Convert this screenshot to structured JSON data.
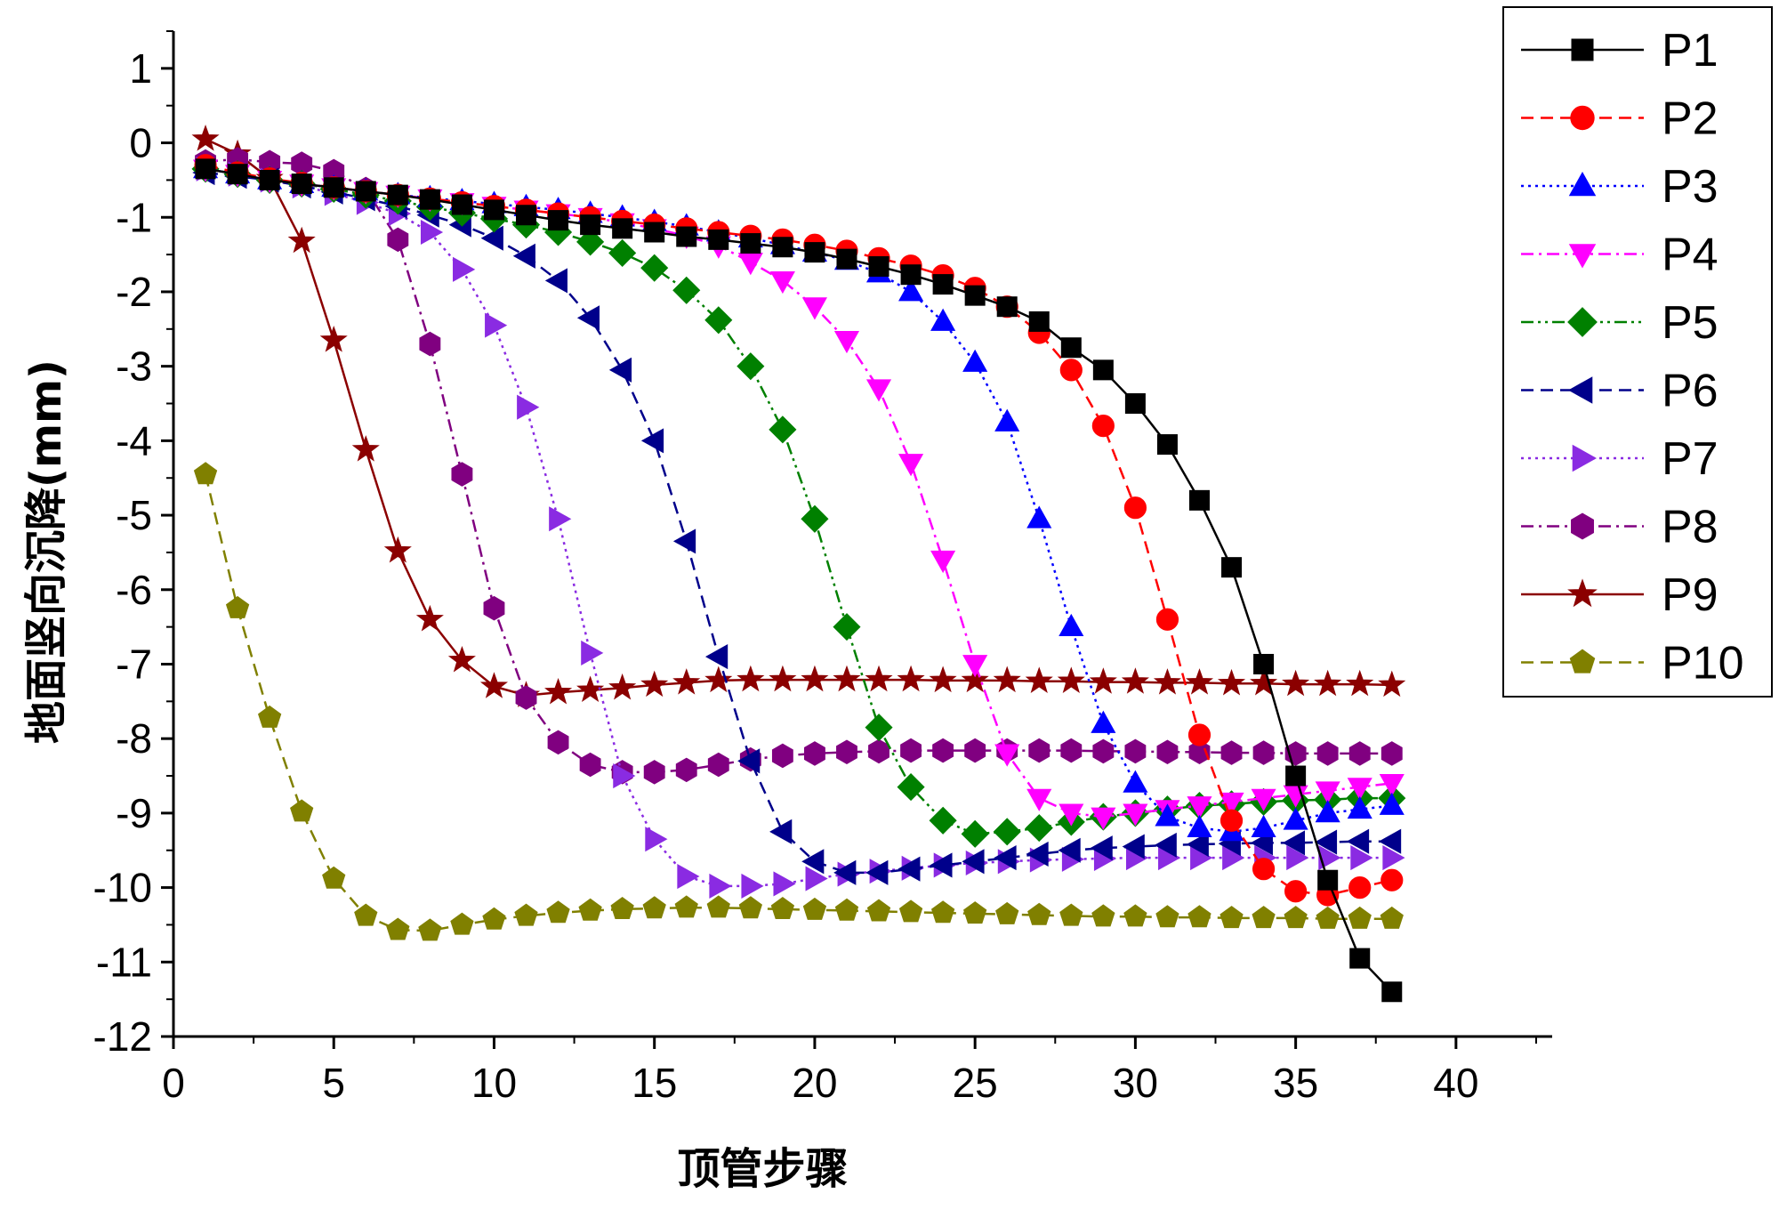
{
  "chart_data": {
    "type": "line",
    "title": "",
    "xlabel": "顶管步骤",
    "ylabel": "地面竖向沉降(mm)",
    "xlim": [
      0,
      43
    ],
    "ylim": [
      -12,
      1.5
    ],
    "xticks": [
      0,
      5,
      10,
      15,
      20,
      25,
      30,
      35,
      40
    ],
    "yticks": [
      1,
      0,
      -1,
      -2,
      -3,
      -4,
      -5,
      -6,
      -7,
      -8,
      -9,
      -10,
      -11,
      -12
    ],
    "legend_position": "top-right",
    "x": [
      1,
      2,
      3,
      4,
      5,
      6,
      7,
      8,
      9,
      10,
      11,
      12,
      13,
      14,
      15,
      16,
      17,
      18,
      19,
      20,
      21,
      22,
      23,
      24,
      25,
      26,
      27,
      28,
      29,
      30,
      31,
      32,
      33,
      34,
      35,
      36,
      37,
      38
    ],
    "series": [
      {
        "name": "P1",
        "color": "#000000",
        "marker": "square",
        "dash": "solid",
        "values": [
          -0.35,
          -0.42,
          -0.5,
          -0.55,
          -0.6,
          -0.65,
          -0.7,
          -0.76,
          -0.83,
          -0.9,
          -0.97,
          -1.04,
          -1.1,
          -1.15,
          -1.2,
          -1.26,
          -1.3,
          -1.35,
          -1.4,
          -1.47,
          -1.56,
          -1.66,
          -1.77,
          -1.9,
          -2.05,
          -2.2,
          -2.4,
          -2.75,
          -3.05,
          -3.5,
          -4.05,
          -4.8,
          -5.7,
          -7.0,
          -8.5,
          -9.9,
          -10.95,
          -11.4
        ]
      },
      {
        "name": "P2",
        "color": "#ff0000",
        "marker": "circle",
        "dash": "dashed",
        "values": [
          -0.3,
          -0.4,
          -0.48,
          -0.54,
          -0.6,
          -0.65,
          -0.7,
          -0.75,
          -0.8,
          -0.85,
          -0.9,
          -0.95,
          -1.0,
          -1.05,
          -1.1,
          -1.15,
          -1.2,
          -1.25,
          -1.3,
          -1.37,
          -1.45,
          -1.55,
          -1.65,
          -1.78,
          -1.95,
          -2.2,
          -2.55,
          -3.05,
          -3.8,
          -4.9,
          -6.4,
          -7.95,
          -9.1,
          -9.75,
          -10.05,
          -10.1,
          -10.0,
          -9.9
        ]
      },
      {
        "name": "P3",
        "color": "#0000ff",
        "marker": "triangle-up",
        "dash": "dotted",
        "values": [
          -0.35,
          -0.42,
          -0.5,
          -0.55,
          -0.6,
          -0.65,
          -0.7,
          -0.74,
          -0.78,
          -0.82,
          -0.86,
          -0.9,
          -0.95,
          -1.0,
          -1.06,
          -1.12,
          -1.2,
          -1.28,
          -1.37,
          -1.47,
          -1.58,
          -1.75,
          -2.0,
          -2.4,
          -2.95,
          -3.75,
          -5.05,
          -6.5,
          -7.8,
          -8.6,
          -9.05,
          -9.2,
          -9.25,
          -9.2,
          -9.1,
          -9.0,
          -8.95,
          -8.9
        ]
      },
      {
        "name": "P4",
        "color": "#ff00ff",
        "marker": "triangle-down",
        "dash": "dashdot",
        "values": [
          -0.35,
          -0.42,
          -0.5,
          -0.55,
          -0.6,
          -0.65,
          -0.7,
          -0.75,
          -0.8,
          -0.85,
          -0.9,
          -0.95,
          -1.0,
          -1.07,
          -1.15,
          -1.25,
          -1.38,
          -1.6,
          -1.85,
          -2.2,
          -2.65,
          -3.3,
          -4.3,
          -5.6,
          -7.0,
          -8.2,
          -8.8,
          -9.0,
          -9.05,
          -9.0,
          -8.95,
          -8.9,
          -8.85,
          -8.8,
          -8.75,
          -8.7,
          -8.65,
          -8.6
        ]
      },
      {
        "name": "P5",
        "color": "#008000",
        "marker": "diamond",
        "dash": "dashdotdot",
        "values": [
          -0.35,
          -0.42,
          -0.5,
          -0.55,
          -0.62,
          -0.7,
          -0.78,
          -0.86,
          -0.94,
          -1.02,
          -1.1,
          -1.2,
          -1.33,
          -1.48,
          -1.68,
          -1.98,
          -2.38,
          -3.0,
          -3.85,
          -5.05,
          -6.5,
          -7.85,
          -8.65,
          -9.1,
          -9.28,
          -9.25,
          -9.2,
          -9.12,
          -9.05,
          -9.0,
          -8.95,
          -8.9,
          -8.88,
          -8.85,
          -8.83,
          -8.82,
          -8.8,
          -8.8
        ]
      },
      {
        "name": "P6",
        "color": "#00008b",
        "marker": "triangle-left",
        "dash": "dashed",
        "values": [
          -0.4,
          -0.45,
          -0.5,
          -0.58,
          -0.66,
          -0.75,
          -0.85,
          -0.97,
          -1.1,
          -1.28,
          -1.52,
          -1.85,
          -2.35,
          -3.05,
          -4.0,
          -5.35,
          -6.9,
          -8.3,
          -9.25,
          -9.65,
          -9.8,
          -9.8,
          -9.75,
          -9.7,
          -9.65,
          -9.6,
          -9.55,
          -9.5,
          -9.47,
          -9.45,
          -9.43,
          -9.42,
          -9.41,
          -9.4,
          -9.4,
          -9.39,
          -9.38,
          -9.38
        ]
      },
      {
        "name": "P7",
        "color": "#8a2be2",
        "marker": "triangle-right",
        "dash": "dotted",
        "values": [
          -0.35,
          -0.42,
          -0.5,
          -0.58,
          -0.68,
          -0.8,
          -0.95,
          -1.2,
          -1.7,
          -2.45,
          -3.55,
          -5.05,
          -6.85,
          -8.5,
          -9.35,
          -9.85,
          -9.98,
          -9.98,
          -9.95,
          -9.88,
          -9.82,
          -9.78,
          -9.74,
          -9.7,
          -9.67,
          -9.65,
          -9.63,
          -9.62,
          -9.61,
          -9.6,
          -9.6,
          -9.6,
          -9.6,
          -9.6,
          -9.6,
          -9.6,
          -9.6,
          -9.6
        ]
      },
      {
        "name": "P8",
        "color": "#800080",
        "marker": "hexagon",
        "dash": "dashdot",
        "values": [
          -0.25,
          -0.22,
          -0.26,
          -0.28,
          -0.38,
          -0.62,
          -1.3,
          -2.7,
          -4.45,
          -6.25,
          -7.45,
          -8.05,
          -8.35,
          -8.45,
          -8.45,
          -8.42,
          -8.35,
          -8.28,
          -8.23,
          -8.2,
          -8.18,
          -8.17,
          -8.16,
          -8.16,
          -8.16,
          -8.16,
          -8.16,
          -8.16,
          -8.17,
          -8.17,
          -8.18,
          -8.18,
          -8.19,
          -8.19,
          -8.2,
          -8.2,
          -8.2,
          -8.2
        ]
      },
      {
        "name": "P9",
        "color": "#8b0000",
        "marker": "star",
        "dash": "solid",
        "values": [
          0.05,
          -0.15,
          -0.48,
          -1.32,
          -2.65,
          -4.12,
          -5.48,
          -6.4,
          -6.95,
          -7.3,
          -7.42,
          -7.38,
          -7.35,
          -7.32,
          -7.28,
          -7.25,
          -7.22,
          -7.21,
          -7.21,
          -7.21,
          -7.21,
          -7.21,
          -7.21,
          -7.22,
          -7.22,
          -7.22,
          -7.23,
          -7.23,
          -7.24,
          -7.24,
          -7.25,
          -7.25,
          -7.26,
          -7.26,
          -7.27,
          -7.27,
          -7.27,
          -7.28
        ]
      },
      {
        "name": "P10",
        "color": "#808000",
        "marker": "pentagon",
        "dash": "dashed",
        "values": [
          -4.45,
          -6.25,
          -7.72,
          -8.98,
          -9.88,
          -10.38,
          -10.57,
          -10.58,
          -10.5,
          -10.43,
          -10.38,
          -10.34,
          -10.31,
          -10.29,
          -10.28,
          -10.27,
          -10.27,
          -10.28,
          -10.29,
          -10.3,
          -10.31,
          -10.32,
          -10.33,
          -10.34,
          -10.35,
          -10.36,
          -10.37,
          -10.38,
          -10.39,
          -10.39,
          -10.4,
          -10.4,
          -10.41,
          -10.41,
          -10.41,
          -10.42,
          -10.42,
          -10.42
        ]
      }
    ]
  }
}
